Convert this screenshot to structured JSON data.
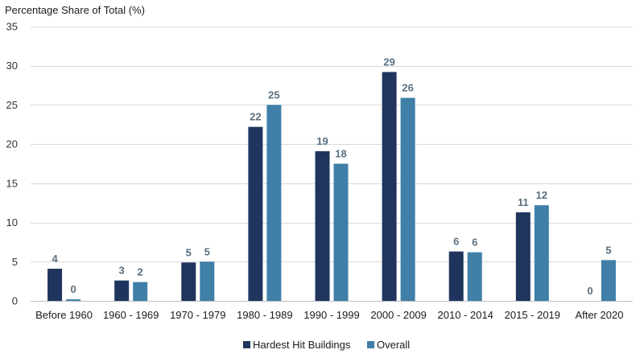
{
  "chart_data": {
    "type": "bar",
    "ylabel": "Percentage Share of Total (%)",
    "ylim": [
      0,
      35
    ],
    "yticks": [
      0,
      5,
      10,
      15,
      20,
      25,
      30,
      35
    ],
    "grid": true,
    "legend_position": "bottom-center",
    "categories": [
      "Before 1960",
      "1960 - 1969",
      "1970 - 1979",
      "1980 - 1989",
      "1990 - 1999",
      "2000 - 2009",
      "2010 - 2014",
      "2015 - 2019",
      "After 2020"
    ],
    "series": [
      {
        "name": "Hardest Hit Buildings",
        "color": "#1f355e",
        "values": [
          4.1,
          2.6,
          4.9,
          22.2,
          19.1,
          29.2,
          6.3,
          11.3,
          0
        ],
        "labels": [
          "4",
          "3",
          "5",
          "22",
          "19",
          "29",
          "6",
          "11",
          "0"
        ]
      },
      {
        "name": "Overall",
        "color": "#3f7fa8",
        "values": [
          0.2,
          2.4,
          5.0,
          25.0,
          17.5,
          25.9,
          6.2,
          12.2,
          5.2
        ],
        "labels": [
          "0",
          "2",
          "5",
          "25",
          "18",
          "26",
          "6",
          "12",
          "5"
        ]
      }
    ],
    "gridline_color": "#d9d9d9"
  }
}
